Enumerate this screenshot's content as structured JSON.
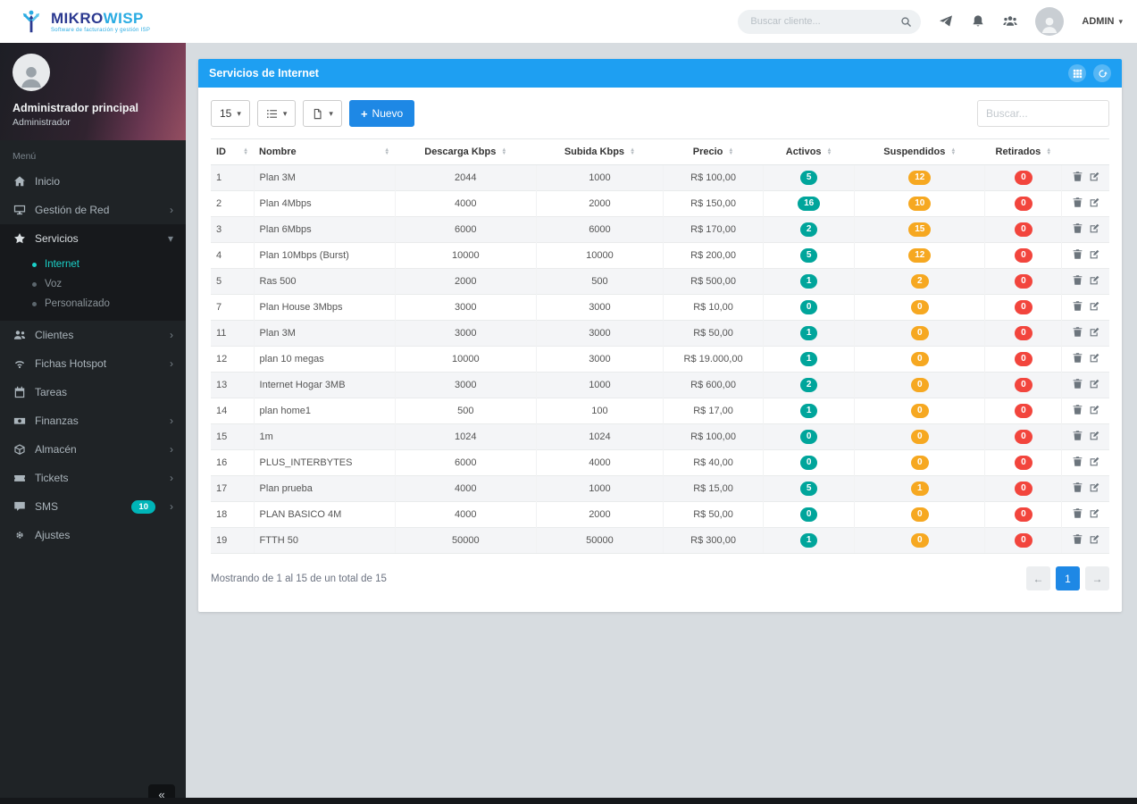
{
  "colors": {
    "accent": "#1e9ff2",
    "accent_dark": "#1e88e5",
    "teal": "#00a59b",
    "orange": "#f6a821",
    "red": "#f2453d",
    "sidebar_bg": "#1f2326",
    "content_bg": "#d7dce0"
  },
  "header": {
    "logo_mikro": "MIKRO",
    "logo_wisp": "WISP",
    "logo_tagline": "Software de facturación y gestión ISP",
    "search_placeholder": "Buscar cliente...",
    "user_name": "ADMIN"
  },
  "sidebar": {
    "profile_name": "Administrador principal",
    "profile_role": "Administrador",
    "menu_label": "Menú",
    "collapse_label": "«",
    "items": [
      {
        "key": "inicio",
        "icon": "home",
        "label": "Inicio"
      },
      {
        "key": "gestion-de-red",
        "icon": "desktop",
        "label": "Gestión de Red",
        "chevron": true
      },
      {
        "key": "servicios",
        "icon": "star",
        "label": "Servicios",
        "chevron": true,
        "expanded": true,
        "active": true,
        "children": [
          {
            "key": "internet",
            "label": "Internet",
            "active": true
          },
          {
            "key": "voz",
            "label": "Voz"
          },
          {
            "key": "personalizado",
            "label": "Personalizado"
          }
        ]
      },
      {
        "key": "clientes",
        "icon": "users",
        "label": "Clientes",
        "chevron": true
      },
      {
        "key": "fichas-hotspot",
        "icon": "wifi",
        "label": "Fichas Hotspot",
        "chevron": true
      },
      {
        "key": "tareas",
        "icon": "calendar",
        "label": "Tareas"
      },
      {
        "key": "finanzas",
        "icon": "finance",
        "label": "Finanzas",
        "chevron": true
      },
      {
        "key": "almacen",
        "icon": "box",
        "label": "Almacén",
        "chevron": true
      },
      {
        "key": "tickets",
        "icon": "ticket",
        "label": "Tickets",
        "chevron": true
      },
      {
        "key": "sms",
        "icon": "comments",
        "label": "SMS",
        "chevron": true,
        "badge": "10"
      },
      {
        "key": "ajustes",
        "icon": "gears",
        "label": "Ajustes"
      }
    ]
  },
  "panel": {
    "title": "Servicios de Internet"
  },
  "toolbar": {
    "page_size": "15",
    "nuevo_label": "Nuevo",
    "search_placeholder": "Buscar..."
  },
  "table": {
    "headers": [
      {
        "key": "id",
        "label": "ID",
        "sortable": true,
        "align": "l"
      },
      {
        "key": "nombre",
        "label": "Nombre",
        "sortable": true,
        "align": "l"
      },
      {
        "key": "descarga",
        "label": "Descarga Kbps",
        "sortable": true,
        "align": "c"
      },
      {
        "key": "subida",
        "label": "Subida Kbps",
        "sortable": true,
        "align": "c"
      },
      {
        "key": "precio",
        "label": "Precio",
        "sortable": true,
        "align": "c"
      },
      {
        "key": "activos",
        "label": "Activos",
        "sortable": true,
        "align": "c"
      },
      {
        "key": "suspendidos",
        "label": "Suspendidos",
        "sortable": true,
        "align": "c"
      },
      {
        "key": "retirados",
        "label": "Retirados",
        "sortable": true,
        "align": "c"
      },
      {
        "key": "acciones",
        "label": "",
        "sortable": false,
        "align": "c"
      }
    ],
    "rows": [
      {
        "id": "1",
        "nombre": "Plan 3M",
        "descarga": "2044",
        "subida": "1000",
        "precio": "R$ 100,00",
        "activos": "5",
        "suspendidos": "12",
        "retirados": "0"
      },
      {
        "id": "2",
        "nombre": "Plan 4Mbps",
        "descarga": "4000",
        "subida": "2000",
        "precio": "R$ 150,00",
        "activos": "16",
        "suspendidos": "10",
        "retirados": "0"
      },
      {
        "id": "3",
        "nombre": "Plan 6Mbps",
        "descarga": "6000",
        "subida": "6000",
        "precio": "R$ 170,00",
        "activos": "2",
        "suspendidos": "15",
        "retirados": "0"
      },
      {
        "id": "4",
        "nombre": "Plan 10Mbps (Burst)",
        "descarga": "10000",
        "subida": "10000",
        "precio": "R$ 200,00",
        "activos": "5",
        "suspendidos": "12",
        "retirados": "0"
      },
      {
        "id": "5",
        "nombre": "Ras 500",
        "descarga": "2000",
        "subida": "500",
        "precio": "R$ 500,00",
        "activos": "1",
        "suspendidos": "2",
        "retirados": "0"
      },
      {
        "id": "7",
        "nombre": "Plan House 3Mbps",
        "descarga": "3000",
        "subida": "3000",
        "precio": "R$ 10,00",
        "activos": "0",
        "suspendidos": "0",
        "retirados": "0"
      },
      {
        "id": "11",
        "nombre": "Plan 3M",
        "descarga": "3000",
        "subida": "3000",
        "precio": "R$ 50,00",
        "activos": "1",
        "suspendidos": "0",
        "retirados": "0"
      },
      {
        "id": "12",
        "nombre": "plan 10 megas",
        "descarga": "10000",
        "subida": "3000",
        "precio": "R$ 19.000,00",
        "activos": "1",
        "suspendidos": "0",
        "retirados": "0"
      },
      {
        "id": "13",
        "nombre": "Internet Hogar 3MB",
        "descarga": "3000",
        "subida": "1000",
        "precio": "R$ 600,00",
        "activos": "2",
        "suspendidos": "0",
        "retirados": "0"
      },
      {
        "id": "14",
        "nombre": "plan home1",
        "descarga": "500",
        "subida": "100",
        "precio": "R$ 17,00",
        "activos": "1",
        "suspendidos": "0",
        "retirados": "0"
      },
      {
        "id": "15",
        "nombre": "1m",
        "descarga": "1024",
        "subida": "1024",
        "precio": "R$ 100,00",
        "activos": "0",
        "suspendidos": "0",
        "retirados": "0"
      },
      {
        "id": "16",
        "nombre": "PLUS_INTERBYTES",
        "descarga": "6000",
        "subida": "4000",
        "precio": "R$ 40,00",
        "activos": "0",
        "suspendidos": "0",
        "retirados": "0"
      },
      {
        "id": "17",
        "nombre": "Plan prueba",
        "descarga": "4000",
        "subida": "1000",
        "precio": "R$ 15,00",
        "activos": "5",
        "suspendidos": "1",
        "retirados": "0"
      },
      {
        "id": "18",
        "nombre": "PLAN BASICO 4M",
        "descarga": "4000",
        "subida": "2000",
        "precio": "R$ 50,00",
        "activos": "0",
        "suspendidos": "0",
        "retirados": "0"
      },
      {
        "id": "19",
        "nombre": "FTTH 50",
        "descarga": "50000",
        "subida": "50000",
        "precio": "R$ 300,00",
        "activos": "1",
        "suspendidos": "0",
        "retirados": "0"
      }
    ]
  },
  "footer": {
    "showing_text": "Mostrando de 1 al 15 de un total de 15",
    "page": "1"
  }
}
